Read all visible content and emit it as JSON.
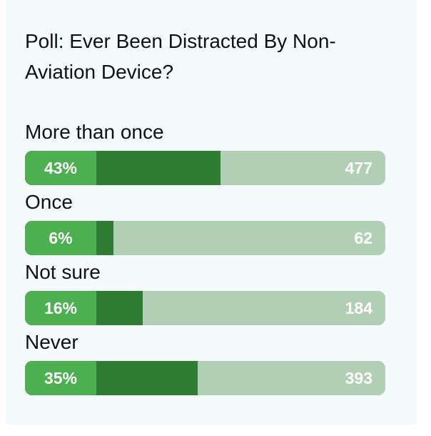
{
  "poll": {
    "title": "Poll: Ever Been Distracted By Non-Aviation Device?",
    "options": [
      {
        "label": "More than once",
        "percent_label": "43%",
        "fraction": 0.43,
        "count": "477"
      },
      {
        "label": "Once",
        "percent_label": "6%",
        "fraction": 0.06,
        "count": "62"
      },
      {
        "label": "Not sure",
        "percent_label": "16%",
        "fraction": 0.16,
        "count": "184"
      },
      {
        "label": "Never",
        "percent_label": "35%",
        "fraction": 0.35,
        "count": "393"
      }
    ]
  },
  "colors": {
    "percent_box": "#4caf50",
    "fill": "#2e7d32",
    "track": "#b0cfb4",
    "text": "#111111"
  }
}
